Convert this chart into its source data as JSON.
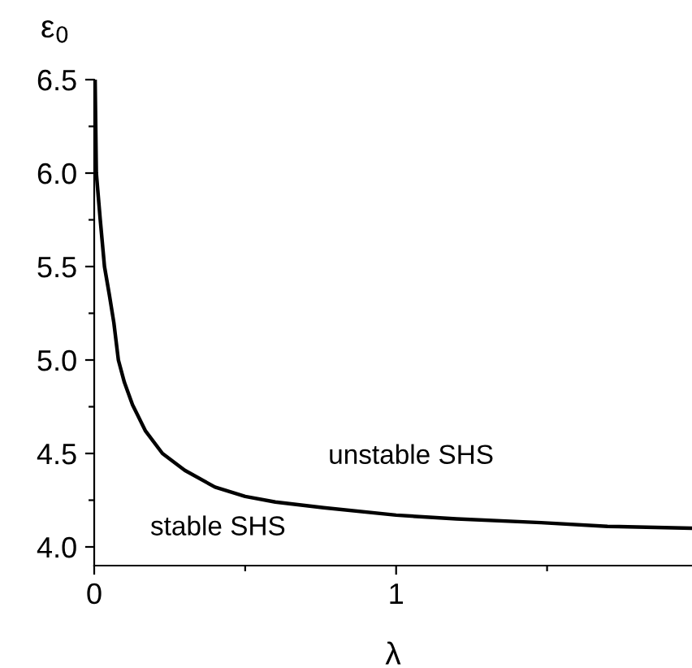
{
  "chart_data": {
    "type": "line",
    "xlabel": "λ",
    "ylabel": "ε$_{0}$",
    "series": [
      {
        "color": "#000000",
        "x": [
          0.003,
          0.007,
          0.02,
          0.034,
          0.05,
          0.065,
          0.08,
          0.1,
          0.127,
          0.17,
          0.226,
          0.3,
          0.4,
          0.5,
          0.6,
          0.76,
          1.0,
          1.2,
          1.48,
          1.7,
          1.98
        ],
        "values": [
          6.5,
          6.0,
          5.75,
          5.5,
          5.35,
          5.2,
          5.0,
          4.88,
          4.76,
          4.62,
          4.5,
          4.41,
          4.32,
          4.27,
          4.24,
          4.21,
          4.17,
          4.15,
          4.13,
          4.11,
          4.1
        ]
      }
    ],
    "xlim": [
      0,
      1.98
    ],
    "ylim": [
      3.9,
      6.5
    ],
    "xticks": [
      0,
      {
        "value": 0.5,
        "label": null
      },
      1,
      {
        "value": 1.5,
        "label": null
      }
    ],
    "yticks": [
      {
        "value": 4,
        "label": "4.0"
      },
      {
        "value": 4.25,
        "label": null
      },
      4.5,
      {
        "value": 4.75,
        "label": null
      },
      {
        "value": 5,
        "label": "5.0"
      },
      {
        "value": 5.25,
        "label": null
      },
      5.5,
      {
        "value": 5.75,
        "label": null
      },
      {
        "value": 6,
        "label": "6.0"
      },
      {
        "value": 6.25,
        "label": null
      },
      6.5
    ],
    "annotations": [
      "unstable SHS",
      "stable SHS"
    ],
    "grid": false,
    "marker": "none",
    "line_style": "solid"
  }
}
